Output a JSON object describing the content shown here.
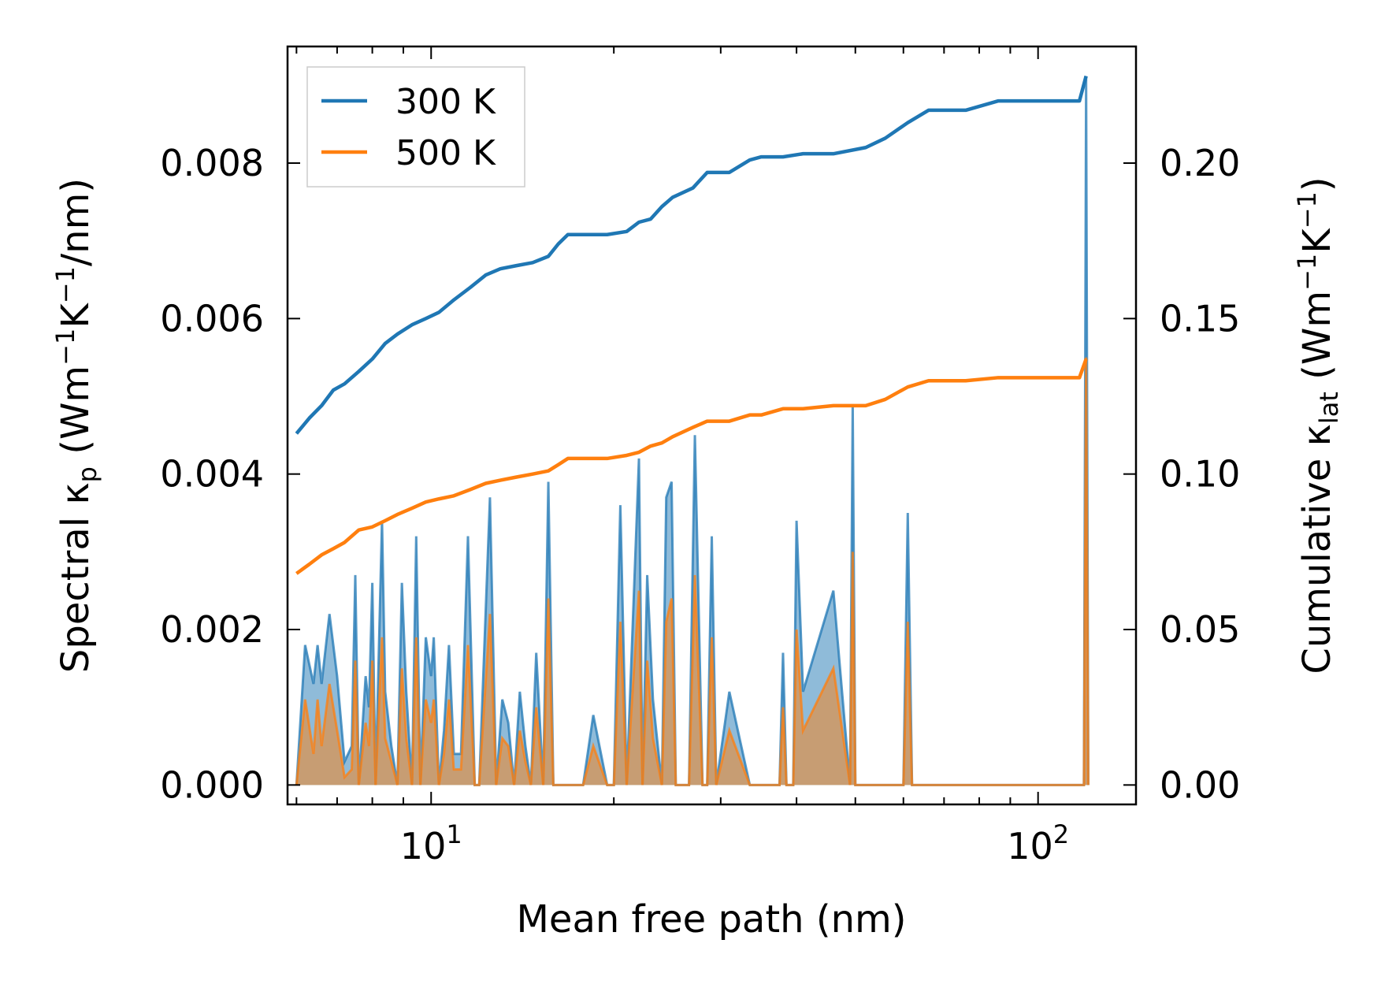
{
  "chart_data": {
    "type": "line",
    "title": "",
    "xlabel": "Mean free path (nm)",
    "xscale": "log",
    "xlim": [
      5.8,
      145
    ],
    "x_tick_labels": [
      {
        "base": "10",
        "exp": "1",
        "value": 10
      },
      {
        "base": "10",
        "exp": "2",
        "value": 100
      }
    ],
    "y_left": {
      "label_prefix": "Spectral κ",
      "label_sub": "p",
      "label_units_open": " (Wm",
      "label_sup1": "−1",
      "label_mid": "K",
      "label_sup2": "−1",
      "label_units_close": "/nm)",
      "ylim": [
        -0.00025,
        0.0095
      ],
      "ticks": [
        0.0,
        0.002,
        0.004,
        0.006,
        0.008
      ],
      "tick_labels": [
        "0.000",
        "0.002",
        "0.004",
        "0.006",
        "0.008"
      ]
    },
    "y_right": {
      "label_prefix": "Cumulative κ",
      "label_sub": "lat",
      "label_units_open": " (Wm",
      "label_sup1": "−1",
      "label_mid": "K",
      "label_sup2": "−1",
      "label_units_close": ")",
      "ylim": [
        -0.00625,
        0.2375
      ],
      "ticks": [
        0.0,
        0.05,
        0.1,
        0.15,
        0.2
      ],
      "tick_labels": [
        "0.00",
        "0.05",
        "0.10",
        "0.15",
        "0.20"
      ]
    },
    "legend": {
      "placement": "top-left",
      "entries": [
        {
          "label": "300 K",
          "color": "#1f77b4"
        },
        {
          "label": "500 K",
          "color": "#ff7f0e"
        }
      ]
    },
    "series": [
      {
        "name": "300 K cumulative κlat",
        "axis": "right",
        "color": "#1f77b4",
        "x": [
          6.0,
          6.3,
          6.6,
          6.9,
          7.2,
          7.6,
          8.0,
          8.4,
          8.8,
          9.3,
          9.8,
          10.3,
          10.9,
          11.6,
          12.3,
          13.0,
          13.8,
          14.7,
          15.6,
          16.2,
          16.8,
          18.0,
          19.5,
          21.0,
          22.0,
          23.0,
          24.0,
          25.0,
          27.0,
          28.5,
          31.0,
          33.5,
          35.0,
          38.0,
          41.0,
          46.0,
          52.0,
          56.0,
          61.0,
          66.0,
          76.0,
          86.0,
          100.0,
          117.0,
          120.0
        ],
        "y": [
          0.113,
          0.118,
          0.122,
          0.127,
          0.129,
          0.133,
          0.137,
          0.142,
          0.145,
          0.148,
          0.15,
          0.152,
          0.156,
          0.16,
          0.164,
          0.166,
          0.167,
          0.168,
          0.17,
          0.174,
          0.177,
          0.177,
          0.177,
          0.178,
          0.181,
          0.182,
          0.186,
          0.189,
          0.192,
          0.197,
          0.197,
          0.201,
          0.202,
          0.202,
          0.203,
          0.203,
          0.205,
          0.208,
          0.213,
          0.217,
          0.217,
          0.22,
          0.22,
          0.22,
          0.228
        ]
      },
      {
        "name": "500 K cumulative κlat",
        "axis": "right",
        "color": "#ff7f0e",
        "x": [
          6.0,
          6.3,
          6.6,
          6.9,
          7.2,
          7.6,
          8.0,
          8.4,
          8.8,
          9.3,
          9.8,
          10.3,
          10.9,
          11.6,
          12.3,
          13.0,
          13.8,
          14.7,
          15.6,
          16.2,
          16.8,
          18.0,
          19.5,
          21.0,
          22.0,
          23.0,
          24.0,
          25.0,
          27.0,
          28.5,
          31.0,
          33.5,
          35.0,
          38.0,
          41.0,
          46.0,
          52.0,
          56.0,
          61.0,
          66.0,
          76.0,
          86.0,
          100.0,
          117.0,
          120.0
        ],
        "y": [
          0.068,
          0.071,
          0.074,
          0.076,
          0.078,
          0.082,
          0.083,
          0.085,
          0.087,
          0.089,
          0.091,
          0.092,
          0.093,
          0.095,
          0.097,
          0.098,
          0.099,
          0.1,
          0.101,
          0.103,
          0.105,
          0.105,
          0.105,
          0.106,
          0.107,
          0.109,
          0.11,
          0.112,
          0.115,
          0.117,
          0.117,
          0.119,
          0.119,
          0.121,
          0.121,
          0.122,
          0.122,
          0.124,
          0.128,
          0.13,
          0.13,
          0.131,
          0.131,
          0.131,
          0.137
        ]
      },
      {
        "name": "300 K spectral κp",
        "axis": "left",
        "fill": true,
        "color": "#1f77b4",
        "x": [
          6.0,
          6.2,
          6.4,
          6.5,
          6.6,
          6.8,
          7.0,
          7.2,
          7.4,
          7.5,
          7.6,
          7.8,
          7.9,
          8.0,
          8.1,
          8.3,
          8.4,
          8.6,
          8.8,
          8.95,
          9.1,
          9.3,
          9.45,
          9.6,
          9.8,
          10.0,
          10.1,
          10.3,
          10.5,
          10.7,
          10.9,
          11.2,
          11.5,
          11.8,
          12.0,
          12.5,
          12.8,
          13.1,
          13.4,
          13.7,
          14.0,
          14.3,
          14.6,
          14.9,
          15.3,
          15.6,
          15.9,
          16.3,
          16.8,
          17.3,
          17.8,
          18.5,
          19.5,
          20.0,
          20.5,
          21.0,
          22.0,
          22.3,
          22.7,
          23.2,
          24.0,
          24.4,
          24.9,
          25.3,
          26.0,
          26.6,
          27.2,
          28.0,
          28.5,
          29.0,
          29.5,
          31.0,
          33.5,
          34.0,
          34.5,
          36.0,
          37.5,
          38.0,
          38.5,
          39.0,
          39.5,
          40.0,
          41.0,
          46.0,
          49.0,
          49.5,
          50.0,
          52.0,
          55.0,
          56.0,
          58.0,
          59.0,
          60.0,
          61.0,
          62.0,
          63.0,
          65.0,
          73.0,
          75.0,
          77.0,
          80.0,
          117.0,
          119.0,
          120.0,
          121.0
        ],
        "y": [
          0.0,
          0.0018,
          0.0013,
          0.0018,
          0.0013,
          0.0022,
          0.0014,
          0.0003,
          0.0005,
          0.0027,
          0.0,
          0.0014,
          0.001,
          0.0026,
          0.0,
          0.0034,
          0.0012,
          0.0005,
          0.0,
          0.0026,
          0.0012,
          0.0,
          0.0032,
          0.0,
          0.0019,
          0.0014,
          0.0019,
          0.0,
          0.0007,
          0.0018,
          0.0004,
          0.0004,
          0.0032,
          0.0,
          0.0,
          0.0037,
          0.0,
          0.0011,
          0.0008,
          0.0,
          0.0012,
          0.0005,
          0.0,
          0.0017,
          0.0,
          0.0039,
          0.0,
          0.0,
          0.0,
          0.0,
          0.0,
          0.0009,
          0.0,
          0.0,
          0.0036,
          0.0,
          0.0042,
          0.0,
          0.0027,
          0.0011,
          0.0,
          0.0037,
          0.0039,
          0.0,
          0.0,
          0.0,
          0.0045,
          0.0,
          0.0,
          0.0032,
          0.0,
          0.0012,
          0.0,
          0.0,
          0.0,
          0.0,
          0.0,
          0.0017,
          0.0,
          0.0,
          0.0,
          0.0034,
          0.0012,
          0.0025,
          0.0,
          0.0049,
          0.0,
          0.0,
          0.0,
          0.0,
          0.0,
          0.0,
          0.0,
          0.0035,
          0.0,
          0.0,
          0.0,
          0.0,
          0.0,
          0.0,
          0.0,
          0.0,
          0.0,
          0.0091,
          0.0
        ]
      },
      {
        "name": "500 K spectral κp",
        "axis": "left",
        "fill": true,
        "color": "#ff7f0e",
        "x": [
          6.0,
          6.2,
          6.4,
          6.5,
          6.6,
          6.8,
          7.0,
          7.2,
          7.4,
          7.5,
          7.6,
          7.8,
          7.9,
          8.0,
          8.1,
          8.3,
          8.4,
          8.6,
          8.8,
          8.95,
          9.1,
          9.3,
          9.45,
          9.6,
          9.8,
          10.0,
          10.1,
          10.3,
          10.5,
          10.7,
          10.9,
          11.2,
          11.5,
          11.8,
          12.0,
          12.5,
          12.8,
          13.1,
          13.4,
          13.7,
          14.0,
          14.3,
          14.6,
          14.9,
          15.3,
          15.6,
          15.9,
          16.3,
          16.8,
          17.3,
          17.8,
          18.5,
          19.5,
          20.0,
          20.5,
          21.0,
          22.0,
          22.3,
          22.7,
          23.2,
          24.0,
          24.4,
          24.9,
          25.3,
          26.0,
          26.6,
          27.2,
          28.0,
          28.5,
          29.0,
          29.5,
          31.0,
          33.5,
          34.0,
          34.5,
          36.0,
          37.5,
          38.0,
          38.5,
          39.0,
          39.5,
          40.0,
          41.0,
          46.0,
          49.0,
          49.5,
          50.0,
          52.0,
          55.0,
          56.0,
          58.0,
          59.0,
          60.0,
          61.0,
          62.0,
          63.0,
          65.0,
          73.0,
          75.0,
          77.0,
          80.0,
          117.0,
          119.0,
          120.0,
          121.0
        ],
        "y": [
          0.0,
          0.0011,
          0.0004,
          0.0011,
          0.0005,
          0.0013,
          0.0007,
          0.0001,
          0.0002,
          0.0016,
          0.0,
          0.0008,
          0.0005,
          0.0016,
          0.0,
          0.0019,
          0.0006,
          0.0003,
          0.0,
          0.0015,
          0.0006,
          0.0,
          0.0019,
          0.0,
          0.0011,
          0.0008,
          0.0011,
          0.0,
          0.0004,
          0.0011,
          0.0002,
          0.0002,
          0.0018,
          0.0,
          0.0,
          0.0022,
          0.0,
          0.0006,
          0.0005,
          0.0,
          0.0007,
          0.0003,
          0.0,
          0.001,
          0.0,
          0.0024,
          0.0,
          0.0,
          0.0,
          0.0,
          0.0,
          0.0005,
          0.0,
          0.0,
          0.0021,
          0.0,
          0.0025,
          0.0,
          0.0016,
          0.0006,
          0.0,
          0.0021,
          0.0024,
          0.0,
          0.0,
          0.0,
          0.0027,
          0.0,
          0.0,
          0.0019,
          0.0,
          0.0007,
          0.0,
          0.0,
          0.0,
          0.0,
          0.0,
          0.001,
          0.0,
          0.0,
          0.0,
          0.002,
          0.0007,
          0.0015,
          0.0,
          0.003,
          0.0,
          0.0,
          0.0,
          0.0,
          0.0,
          0.0,
          0.0,
          0.0021,
          0.0,
          0.0,
          0.0,
          0.0,
          0.0,
          0.0,
          0.0,
          0.0,
          0.0,
          0.0055,
          0.0
        ]
      }
    ]
  }
}
